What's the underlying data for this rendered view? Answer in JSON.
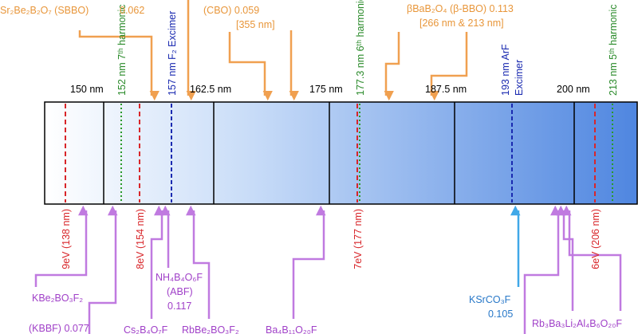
{
  "wavelength_ticks": [
    "150 nm",
    "162.5 nm",
    "175 nm",
    "187.5 nm",
    "200 nm"
  ],
  "top_line_labels": [
    "152 nm 7ᵗʰ harmonic",
    "157 nm F₂ Excimer",
    "177.3 nm 6ᵗʰ harmonic",
    [
      "193 nm ArF",
      "Excimer"
    ],
    "213 nm 5ᵗʰ harmonic"
  ],
  "bottom_line_labels": [
    "9eV (138 nm)",
    "8eV (154 nm)",
    "7eV (177 nm)",
    "6eV (206 nm)"
  ],
  "top_crystals": [
    [
      "Sr₂Be₂B₂O₇ (SBBO)",
      "0.062"
    ],
    [
      "(CBO) 0.059",
      "[355 nm]"
    ],
    [
      "βBaB₂O₄ (β-BBO) 0.113",
      "[266 nm & 213 nm]"
    ]
  ],
  "bottom_crystals": [
    [
      "KBe₂BO₃F₂",
      "(KBBF) 0.077"
    ],
    [
      "NH₄B₄O₆F",
      "(ABF)",
      "0.117"
    ],
    [
      "Cs₂B₄O₇F"
    ],
    [
      "RbBe₂BO₃F₂"
    ],
    [
      "Ba₄B₁₁O₂₀F"
    ],
    [
      "KSrCO₃F",
      "0.105"
    ],
    [
      "Rb₃Ba₃Li₂Al₄B₆O₂₀F"
    ]
  ]
}
